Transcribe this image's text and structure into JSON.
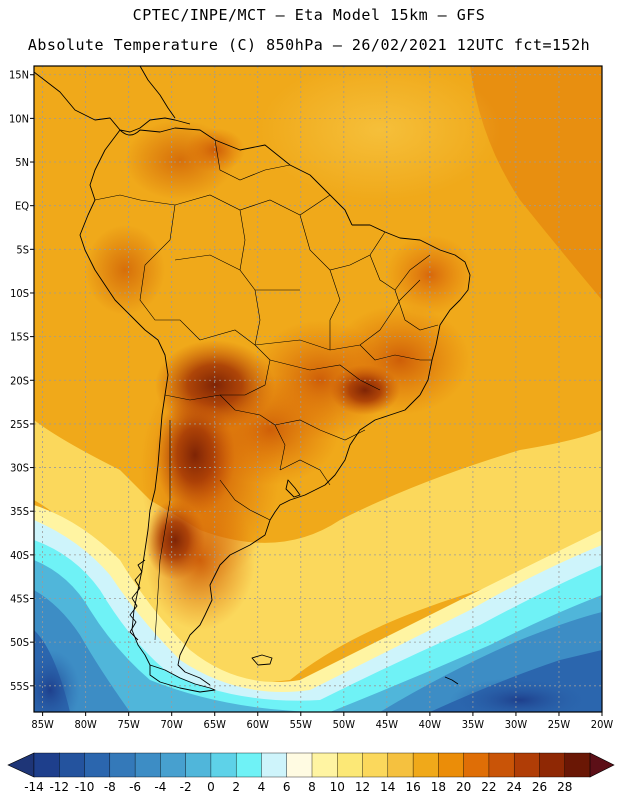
{
  "header": {
    "line1": "CPTEC/INPE/MCT —  Eta Model 15km — GFS",
    "line2": "Absolute Temperature (C) 850hPa — 26/02/2021 12UTC fct=152h"
  },
  "map": {
    "lat_labels": [
      "15N",
      "10N",
      "5N",
      "EQ",
      "5S",
      "10S",
      "15S",
      "20S",
      "25S",
      "30S",
      "35S",
      "40S",
      "45S",
      "50S",
      "55S"
    ],
    "lon_labels": [
      "85W",
      "80W",
      "75W",
      "70W",
      "65W",
      "60W",
      "55W",
      "50W",
      "45W",
      "40W",
      "35W",
      "30W",
      "25W",
      "20W"
    ],
    "lat_range": [
      16,
      -58
    ],
    "lon_range": [
      -86,
      -20
    ]
  },
  "colorbar": {
    "labels": [
      "-14",
      "-12",
      "-10",
      "-8",
      "-6",
      "-4",
      "-2",
      "0",
      "2",
      "4",
      "6",
      "8",
      "10",
      "12",
      "14",
      "16",
      "18",
      "20",
      "22",
      "24",
      "26",
      "28"
    ],
    "colors": [
      "#1e3f8c",
      "#24539e",
      "#2b66ae",
      "#3479b9",
      "#3d8dc5",
      "#47a0cf",
      "#50b6da",
      "#5ed2e8",
      "#6ff2f6",
      "#cef4fb",
      "#fffbe2",
      "#fff4a2",
      "#fce876",
      "#fbd85c",
      "#f5c13f",
      "#f0a91a",
      "#eb8d08",
      "#df6e06",
      "#c95407",
      "#b03d06",
      "#8f2804",
      "#6a1705"
    ],
    "low_extend_color": "#1e3577",
    "high_extend_color": "#5c0f17"
  },
  "colors": {
    "land_outline": "#000000",
    "gridline": "#9a9a9a"
  }
}
